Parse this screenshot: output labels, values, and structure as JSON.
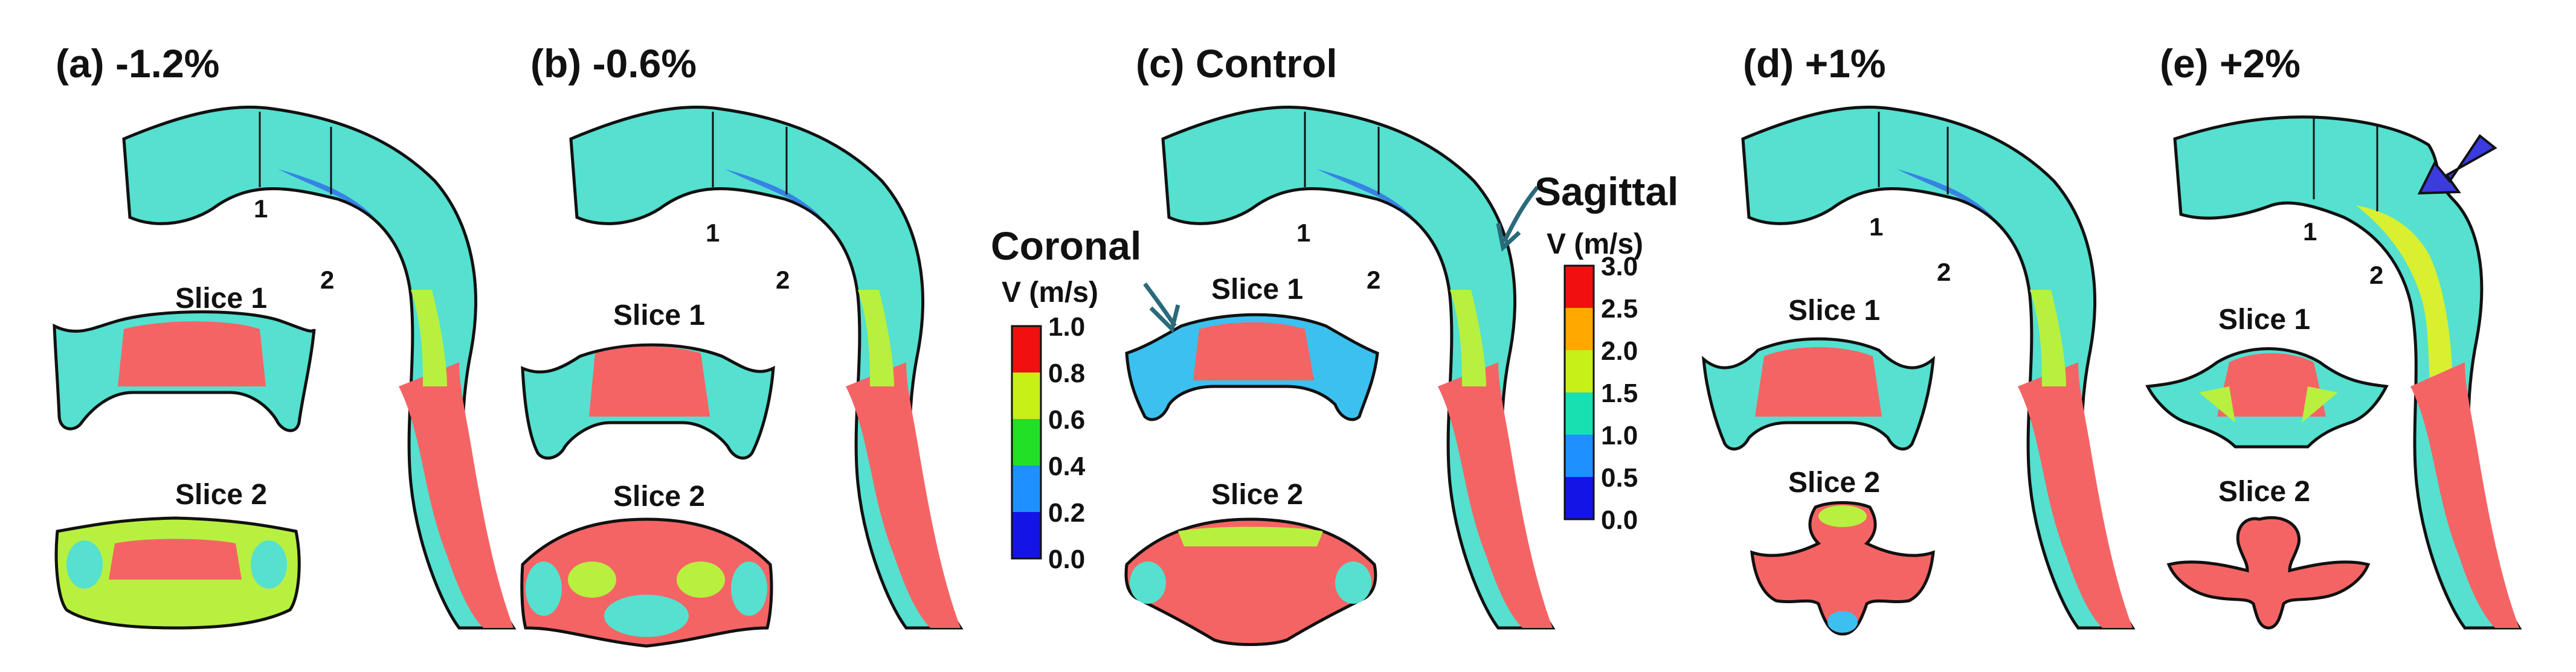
{
  "panels": [
    {
      "label": "(a) -1.2%",
      "slice1": "Slice 1",
      "slice2": "Slice 2",
      "cut1": "1",
      "cut2": "2"
    },
    {
      "label": "(b) -0.6%",
      "slice1": "Slice 1",
      "slice2": "Slice 2",
      "cut1": "1",
      "cut2": "2"
    },
    {
      "label": "(c) Control",
      "slice1": "Slice 1",
      "slice2": "Slice 2",
      "cut1": "1",
      "cut2": "2"
    },
    {
      "label": "(d) +1%",
      "slice1": "Slice 1",
      "slice2": "Slice 2",
      "cut1": "1",
      "cut2": "2"
    },
    {
      "label": "(e) +2%",
      "slice1": "Slice 1",
      "slice2": "Slice 2",
      "cut1": "1",
      "cut2": "2"
    }
  ],
  "coronal": {
    "title": "Coronal",
    "unit": "V (m/s)",
    "ticks": [
      "1.0",
      "0.8",
      "0.6",
      "0.4",
      "0.2",
      "0.0"
    ]
  },
  "sagittal": {
    "title": "Sagittal",
    "unit": "V (m/s)",
    "ticks": [
      "3.0",
      "2.5",
      "2.0",
      "1.5",
      "1.0",
      "0.5",
      "0.0"
    ]
  },
  "colorscale": [
    "#1414e6",
    "#1e90ff",
    "#19e0b0",
    "#22e026",
    "#c6f018",
    "#ffa800",
    "#f01010"
  ],
  "colors": {
    "jet": "#f56464",
    "core": "#55e8d8",
    "wall": "#3cc0f0",
    "arrow": "#3b3be0"
  }
}
